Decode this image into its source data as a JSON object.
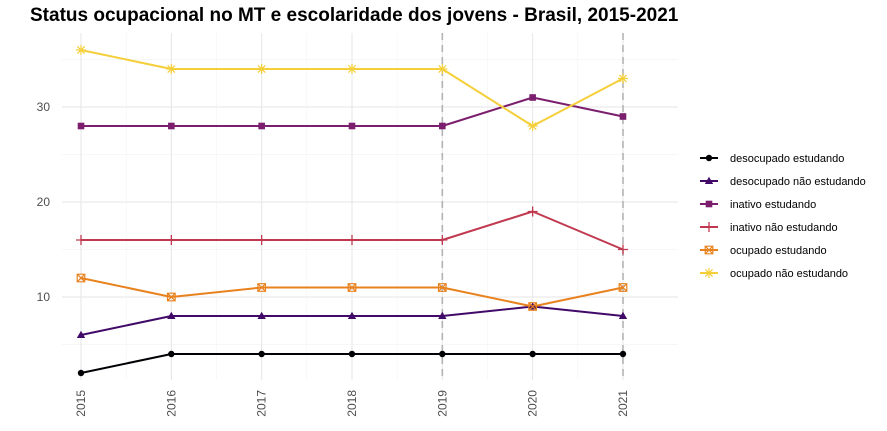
{
  "chart_data": {
    "type": "line",
    "title": "Status ocupacional no MT e escolaridade dos jovens - Brasil, 2015-2021",
    "xlabel": "",
    "ylabel": "",
    "x": [
      "2015",
      "2016",
      "2017",
      "2018",
      "2019",
      "2020",
      "2021"
    ],
    "y_ticks": [
      "10",
      "20",
      "30"
    ],
    "ylim": [
      0,
      37
    ],
    "grid": true,
    "reference_lines_x": [
      "2019",
      "2021"
    ],
    "legend_position": "right",
    "series": [
      {
        "name": "desocupado estudando",
        "values": [
          2,
          4,
          4,
          4,
          4,
          4,
          4
        ],
        "color": "#000004",
        "marker": "circle"
      },
      {
        "name": "desocupado não estudando",
        "values": [
          6,
          8,
          8,
          8,
          8,
          9,
          8
        ],
        "color": "#420a68",
        "marker": "triangle"
      },
      {
        "name": "inativo estudando",
        "values": [
          28,
          28,
          28,
          28,
          28,
          31,
          29
        ],
        "color": "#7b1e6e",
        "marker": "square"
      },
      {
        "name": "inativo não estudando",
        "values": [
          16,
          16,
          16,
          16,
          16,
          19,
          15
        ],
        "color": "#c0394f",
        "marker": "plus"
      },
      {
        "name": "ocupado estudando",
        "values": [
          12,
          10,
          11,
          11,
          11,
          9,
          11
        ],
        "color": "#e8821e",
        "marker": "square-cross"
      },
      {
        "name": "ocupado não estudando",
        "values": [
          36,
          34,
          34,
          34,
          34,
          28,
          33
        ],
        "color": "#f5cf3a",
        "marker": "asterisk"
      }
    ]
  }
}
